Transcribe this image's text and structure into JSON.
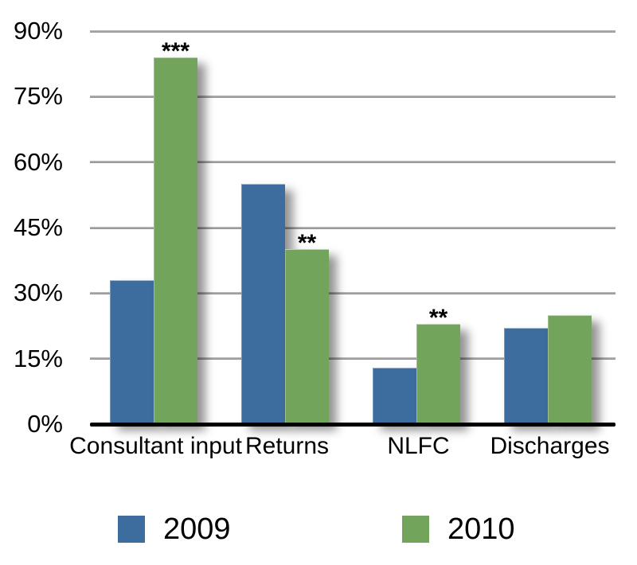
{
  "chart_data": {
    "type": "bar",
    "title": "",
    "categories": [
      "Consultant input",
      "Returns",
      "NLFC",
      "Discharges"
    ],
    "series": [
      {
        "name": "2009",
        "color": "#3c6d9e",
        "values": [
          33,
          55,
          13,
          22
        ]
      },
      {
        "name": "2010",
        "color": "#72a45c",
        "values": [
          84,
          40,
          23,
          25
        ]
      }
    ],
    "significance_markers": [
      {
        "category": "Consultant input",
        "series": "2010",
        "label": "***"
      },
      {
        "category": "Returns",
        "series": "2010",
        "label": "**"
      },
      {
        "category": "NLFC",
        "series": "2010",
        "label": "**"
      }
    ],
    "y_ticks": [
      {
        "value": 0,
        "label": "0%"
      },
      {
        "value": 15,
        "label": "15%"
      },
      {
        "value": 30,
        "label": "30%"
      },
      {
        "value": 45,
        "label": "45%"
      },
      {
        "value": 60,
        "label": "60%"
      },
      {
        "value": 75,
        "label": "75%"
      },
      {
        "value": 90,
        "label": "90%"
      }
    ],
    "ylim": [
      0,
      90
    ],
    "grid": true,
    "legend_position": "bottom",
    "colors": {
      "bar_2009": "#3c6d9e",
      "bar_2010": "#72a45c",
      "gridline": "#a2a2a2",
      "axis_line": "#000000",
      "text": "#000000",
      "background": "#ffffff"
    }
  }
}
